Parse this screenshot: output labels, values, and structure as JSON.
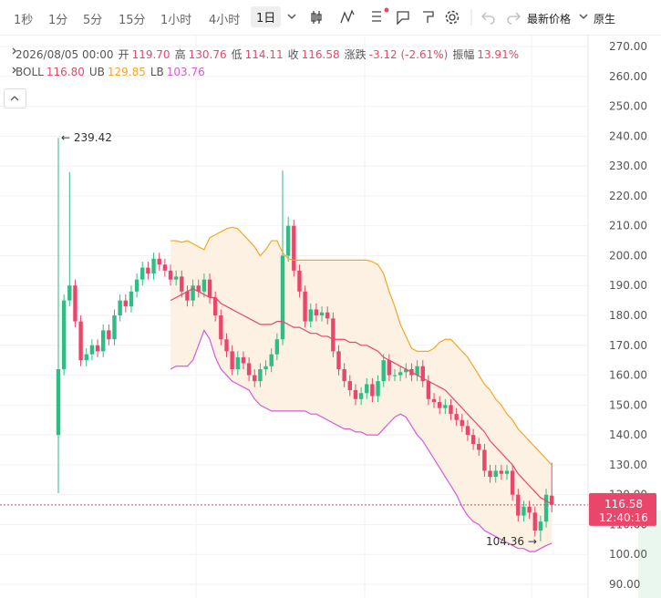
{
  "toolbar": {
    "intervals": [
      "1秒",
      "1分",
      "5分",
      "15分",
      "1小时",
      "4小时",
      "1日"
    ],
    "price_type": "最新价格",
    "mode": "原生"
  },
  "header": {
    "date": "2026/08/05 00:00",
    "items": [
      {
        "label": "开",
        "value": "119.70"
      },
      {
        "label": "高",
        "value": "130.76"
      },
      {
        "label": "低",
        "value": "114.11"
      },
      {
        "label": "收",
        "value": "116.58"
      },
      {
        "label": "涨跌",
        "value": "-3.12 (-2.61%)"
      },
      {
        "label": "振幅",
        "value": "13.91%"
      }
    ]
  },
  "chart_data": {
    "type": "candlestick",
    "open": [
      140,
      162,
      185,
      190,
      178,
      165,
      167,
      170,
      168,
      175,
      172,
      180,
      185,
      183,
      188,
      192,
      196,
      194,
      199,
      197,
      195,
      192,
      193,
      188,
      185,
      190,
      188,
      192,
      186,
      180,
      172,
      168,
      162,
      166,
      164,
      160,
      158,
      162,
      163,
      167,
      172,
      200,
      210,
      195,
      188,
      178,
      182,
      180,
      181,
      179,
      168,
      162,
      158,
      155,
      152,
      154,
      157,
      153,
      158,
      165,
      160,
      160,
      161,
      162,
      160,
      163,
      158,
      152,
      151,
      149,
      150,
      147,
      145,
      143,
      140,
      137,
      135,
      128,
      126,
      128,
      127,
      128,
      120,
      113,
      116,
      114,
      108,
      111,
      119.7
    ],
    "high": [
      239.42,
      187,
      228,
      192,
      180,
      169,
      172,
      172,
      177,
      177,
      182,
      187,
      187,
      190,
      194,
      198,
      198,
      201,
      201,
      199,
      197,
      195,
      195,
      190,
      192,
      192,
      194,
      194,
      188,
      182,
      174,
      170,
      168,
      168,
      166,
      162,
      164,
      165,
      169,
      174,
      228.5,
      213,
      212,
      197,
      190,
      184,
      184,
      183,
      183,
      181,
      170,
      164,
      160,
      157,
      156,
      159,
      159,
      160,
      167,
      167,
      162,
      163,
      164,
      164,
      165,
      165,
      160,
      154,
      153,
      152,
      152,
      149,
      147,
      145,
      142,
      139,
      137,
      130,
      130,
      130,
      130,
      130,
      122,
      118,
      118,
      116,
      113,
      122,
      130.76
    ],
    "low": [
      120.5,
      160,
      183,
      176,
      163,
      163,
      165,
      166,
      166,
      170,
      170,
      178,
      181,
      181,
      186,
      190,
      192,
      192,
      195,
      193,
      190,
      190,
      186,
      183,
      183,
      186,
      186,
      184,
      178,
      170,
      166,
      160,
      160,
      162,
      158,
      156,
      156,
      160,
      161,
      165,
      170,
      198,
      193,
      186,
      176,
      176,
      178,
      178,
      177,
      166,
      160,
      156,
      153,
      150,
      150,
      152,
      151,
      151,
      156,
      158,
      158,
      158,
      159,
      158,
      158,
      156,
      150,
      149,
      147,
      147,
      145,
      143,
      141,
      138,
      135,
      133,
      126,
      124,
      124,
      125,
      125,
      118,
      111,
      111,
      112,
      106,
      104.36,
      109,
      114.11
    ],
    "close": [
      162,
      185,
      190,
      178,
      165,
      167,
      170,
      168,
      175,
      172,
      180,
      185,
      183,
      188,
      192,
      196,
      194,
      199,
      197,
      195,
      192,
      193,
      188,
      185,
      190,
      188,
      192,
      186,
      180,
      172,
      168,
      162,
      166,
      164,
      160,
      158,
      162,
      163,
      167,
      172,
      200,
      210,
      195,
      188,
      178,
      182,
      180,
      181,
      179,
      168,
      162,
      158,
      155,
      152,
      154,
      157,
      153,
      158,
      165,
      160,
      160,
      161,
      162,
      160,
      163,
      158,
      152,
      151,
      149,
      150,
      147,
      145,
      143,
      140,
      137,
      135,
      128,
      126,
      128,
      127,
      128,
      120,
      113,
      116,
      114,
      108,
      111,
      120,
      116.58
    ],
    "up_color": "#2ebd85",
    "down_color": "#e8476b",
    "series": [
      {
        "name": "BOLL",
        "legend_value": "116.80",
        "color": "#e8476b",
        "values": [
          null,
          null,
          null,
          null,
          null,
          null,
          null,
          null,
          null,
          null,
          null,
          null,
          null,
          null,
          null,
          null,
          null,
          null,
          null,
          null,
          185,
          186,
          187,
          188,
          189,
          188,
          187,
          186,
          186,
          184,
          183,
          182,
          181,
          180,
          179,
          178,
          177,
          177,
          177,
          178,
          178,
          177,
          176,
          176,
          175,
          174,
          174,
          173,
          173,
          172,
          172,
          172,
          171,
          171,
          170,
          170,
          169,
          168,
          166,
          165,
          164,
          163,
          162,
          161,
          160,
          159,
          158,
          157,
          156,
          155,
          153,
          151,
          149,
          147,
          145,
          143,
          141,
          138,
          136,
          134,
          132,
          130,
          127,
          125,
          123,
          121,
          119,
          118,
          116.8
        ]
      },
      {
        "name": "UB",
        "legend_value": "129.85",
        "color": "#f5a623",
        "values": [
          null,
          null,
          null,
          null,
          null,
          null,
          null,
          null,
          null,
          null,
          null,
          null,
          null,
          null,
          null,
          null,
          null,
          null,
          null,
          null,
          205,
          205,
          204.5,
          205,
          204,
          203,
          202,
          206,
          207,
          208,
          209,
          209.5,
          209,
          207,
          205,
          203,
          200,
          202,
          205,
          205,
          201,
          199,
          198.5,
          198.5,
          198.5,
          198.5,
          198.5,
          198.5,
          198.5,
          198.5,
          198.5,
          198.5,
          198.5,
          198.5,
          198.5,
          198.5,
          198,
          197,
          194,
          188,
          183,
          177,
          173,
          169,
          168,
          168,
          168,
          169,
          171,
          172,
          172,
          170,
          168,
          166,
          163,
          160,
          157,
          155,
          152,
          150,
          147,
          145,
          142,
          140,
          138,
          136,
          134,
          132,
          129.85
        ]
      },
      {
        "name": "LB",
        "legend_value": "103.76",
        "color": "#d65ad6",
        "values": [
          null,
          null,
          null,
          null,
          null,
          null,
          null,
          null,
          null,
          null,
          null,
          null,
          null,
          null,
          null,
          null,
          null,
          null,
          null,
          null,
          162,
          163,
          163,
          163,
          165,
          170,
          175,
          172,
          166,
          162,
          160,
          158,
          157,
          156,
          155,
          152,
          150,
          149,
          148,
          148,
          148,
          148,
          148,
          148,
          148,
          147,
          147,
          146,
          145,
          144,
          143,
          142,
          142,
          141,
          141,
          140,
          140,
          140,
          142,
          144,
          146,
          147,
          146,
          143,
          140,
          138,
          135,
          132,
          129,
          126,
          123,
          120,
          116,
          113,
          111,
          110,
          108,
          107,
          106,
          105,
          104,
          103,
          102,
          102,
          101,
          101,
          102,
          103,
          103.76
        ]
      }
    ],
    "band_fill": "#fdf1e4",
    "ylim": [
      85.43,
      273.97
    ],
    "yticks": [
      {
        "value": 90,
        "label": "90.00"
      },
      {
        "value": 100,
        "label": "100.00"
      },
      {
        "value": 110,
        "label": "110.00"
      },
      {
        "value": 120,
        "label": "120.00"
      },
      {
        "value": 130,
        "label": "130.00"
      },
      {
        "value": 140,
        "label": "140.00"
      },
      {
        "value": 150,
        "label": "150.00"
      },
      {
        "value": 160,
        "label": "160.00"
      },
      {
        "value": 170,
        "label": "170.00"
      },
      {
        "value": 180,
        "label": "180.00"
      },
      {
        "value": 190,
        "label": "190.00"
      },
      {
        "value": 200,
        "label": "200.00"
      },
      {
        "value": 210,
        "label": "210.00"
      },
      {
        "value": 220,
        "label": "220.00"
      },
      {
        "value": 230,
        "label": "230.00"
      },
      {
        "value": 240,
        "label": "240.00"
      },
      {
        "value": 250,
        "label": "250.00"
      },
      {
        "value": 260,
        "label": "260.00"
      },
      {
        "value": 270,
        "label": "270.00"
      }
    ],
    "grid": true,
    "high_marker": "← 239.42",
    "low_marker": "104.36 →",
    "last_price_label": "116.58",
    "countdown": "12:40:16"
  }
}
